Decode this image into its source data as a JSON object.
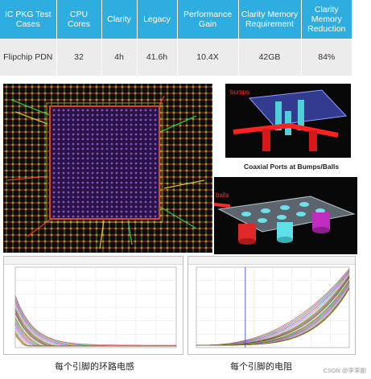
{
  "table": {
    "headers": [
      "IC PKG Test Cases",
      "CPU Cores",
      "Clarity",
      "Legacy",
      "Performance Gain",
      "Clarity Memory Requirement",
      "Clarity Memory Reduction"
    ],
    "rows": [
      [
        "Flipchip PDN",
        "32",
        "4h",
        "41.6h",
        "10.4X",
        "42GB",
        "84%"
      ]
    ],
    "header_color": "#2eaee0",
    "row_color": "#ececec"
  },
  "renders": {
    "bumps_label": "bumps",
    "balls_label": "balls",
    "caption": "Coaxial Ports at Bumps/Balls"
  },
  "charts": {
    "left_caption": "每个引脚的环路电感",
    "right_caption": "每个引脚的电阻"
  },
  "watermark": "CSDN @李李副"
}
